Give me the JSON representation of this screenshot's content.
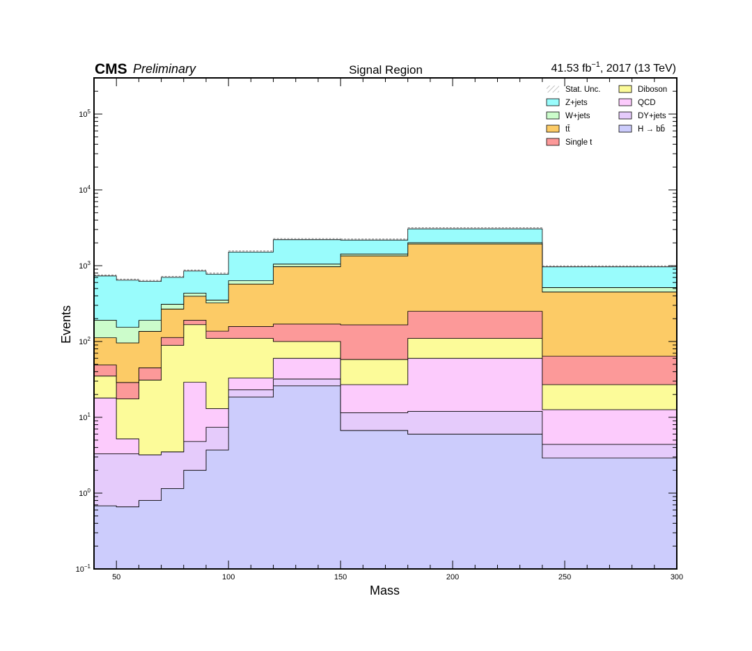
{
  "header": {
    "experiment": "CMS",
    "status": "Preliminary",
    "title": "Signal Region",
    "lumi_value": "41.53 fb",
    "lumi_exp": "−1",
    "lumi_rest": ", 2017 (13 TeV)"
  },
  "chart_data": {
    "type": "area",
    "stacked": true,
    "title": "Signal Region",
    "xlabel": "Mass",
    "ylabel": "Events",
    "xlim": [
      40,
      300
    ],
    "ylim": [
      0.1,
      300000
    ],
    "yscale": "log",
    "grid": false,
    "legend_position": "top-right",
    "bin_edges": [
      40,
      50,
      60,
      70,
      80,
      90,
      100,
      120,
      150,
      180,
      240,
      300
    ],
    "x_ticks": [
      50,
      100,
      150,
      200,
      250,
      300
    ],
    "y_ticks": [
      {
        "base": "10",
        "exp": "−1",
        "value": 0.1
      },
      {
        "base": "10",
        "exp": "0",
        "value": 1
      },
      {
        "base": "10",
        "exp": "1",
        "value": 10
      },
      {
        "base": "10",
        "exp": "2",
        "value": 100
      },
      {
        "base": "10",
        "exp": "3",
        "value": 1000
      },
      {
        "base": "10",
        "exp": "4",
        "value": 10000
      },
      {
        "base": "10",
        "exp": "5",
        "value": 100000
      }
    ],
    "series": [
      {
        "name": "H → bb̄",
        "color": "#ccccfc",
        "values": [
          0.68,
          0.66,
          0.8,
          1.15,
          2.0,
          3.7,
          18.5,
          26.0,
          6.7,
          6.0,
          2.9
        ]
      },
      {
        "name": "DY+jets",
        "color": "#e5cbfb",
        "values": [
          2.62,
          2.64,
          2.4,
          2.35,
          2.8,
          3.7,
          4.5,
          6.0,
          4.8,
          6.0,
          1.5
        ]
      },
      {
        "name": "QCD",
        "color": "#fccbfc",
        "values": [
          14.7,
          1.9,
          0,
          0,
          24.2,
          5.6,
          10.0,
          28.0,
          15.5,
          48.0,
          8.2
        ]
      },
      {
        "name": "Diboson",
        "color": "#fcfb99",
        "values": [
          17.0,
          12.3,
          27.8,
          85.5,
          138.0,
          97.0,
          77.0,
          40.0,
          31.0,
          50.0,
          14.4
        ]
      },
      {
        "name": "Single t",
        "color": "#fc9999",
        "values": [
          14.0,
          11.3,
          14.0,
          24.0,
          24.0,
          27.0,
          48.0,
          70.0,
          108.0,
          140.0,
          37.0
        ]
      },
      {
        "name": "tt̄",
        "color": "#fccb66",
        "values": [
          63.0,
          67.0,
          91.0,
          155.0,
          205.0,
          185.0,
          415.0,
          800.0,
          1180.0,
          1680.0,
          386.0
        ]
      },
      {
        "name": "W+jets",
        "color": "#ccfccb",
        "values": [
          79.0,
          58.0,
          54.0,
          42.0,
          38.0,
          30.0,
          60.0,
          80.0,
          80.0,
          80.0,
          65.0
        ]
      },
      {
        "name": "Z+jets",
        "color": "#99fcfc",
        "values": [
          540.0,
          490.0,
          430.0,
          390.0,
          415.0,
          420.0,
          880.0,
          1150.0,
          750.0,
          1050.0,
          450.0
        ]
      }
    ]
  },
  "legend": {
    "items": [
      {
        "label": "Stat. Unc.",
        "kind": "hatch",
        "color": "#999999"
      },
      {
        "label": "Z+jets",
        "kind": "box",
        "color": "#99fcfc"
      },
      {
        "label": "W+jets",
        "kind": "box",
        "color": "#ccfccb"
      },
      {
        "label": "tt̄",
        "kind": "box",
        "color": "#fccb66"
      },
      {
        "label": "Single t",
        "kind": "box",
        "color": "#fc9999"
      },
      {
        "label": "Diboson",
        "kind": "box",
        "color": "#fcfb99"
      },
      {
        "label": "QCD",
        "kind": "box",
        "color": "#fccbfc"
      },
      {
        "label": "DY+jets",
        "kind": "box",
        "color": "#e5cbfb"
      },
      {
        "label": "H → bb̄",
        "kind": "box",
        "color": "#ccccfc"
      }
    ]
  }
}
